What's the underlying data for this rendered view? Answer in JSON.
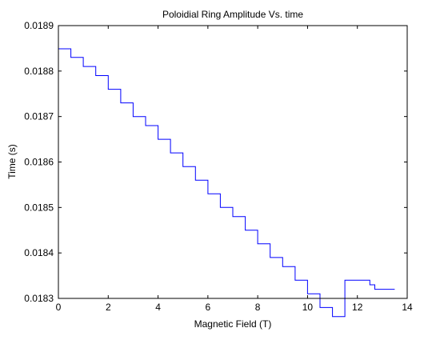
{
  "chart_data": {
    "type": "line",
    "title": "Poloidial Ring Amplitude Vs. time",
    "xlabel": "Magnetic Field (T)",
    "ylabel": "Time (s)",
    "xlim": [
      0,
      14
    ],
    "ylim": [
      0.0183,
      0.0189
    ],
    "xticks": [
      0,
      2,
      4,
      6,
      8,
      10,
      12,
      14
    ],
    "xtick_labels": [
      "0",
      "2",
      "4",
      "6",
      "8",
      "10",
      "12",
      "14"
    ],
    "yticks": [
      0.0183,
      0.0184,
      0.0185,
      0.0186,
      0.0187,
      0.0188,
      0.0189
    ],
    "ytick_labels": [
      "0.0183",
      "0.0184",
      "0.0185",
      "0.0186",
      "0.0187",
      "0.0188",
      "0.0189"
    ],
    "grid": false,
    "line_color": "#0000ff",
    "series": [
      {
        "step": true,
        "x": [
          0,
          0.5,
          1,
          1.5,
          2,
          2.5,
          3,
          3.5,
          4,
          4.5,
          5,
          5.5,
          6,
          6.5,
          7,
          7.5,
          8,
          8.5,
          9,
          9.5,
          10,
          10.5,
          11,
          11.5,
          12,
          12.5,
          12.7,
          13.5
        ],
        "y": [
          0.018849,
          0.01883,
          0.01881,
          0.01879,
          0.01876,
          0.01873,
          0.0187,
          0.01868,
          0.01865,
          0.01862,
          0.01859,
          0.01856,
          0.01853,
          0.0185,
          0.01848,
          0.01845,
          0.01842,
          0.01839,
          0.01837,
          0.01834,
          0.01831,
          0.01828,
          0.01826,
          0.01834,
          0.01834,
          0.01833,
          0.01832,
          0.01832
        ]
      }
    ]
  }
}
